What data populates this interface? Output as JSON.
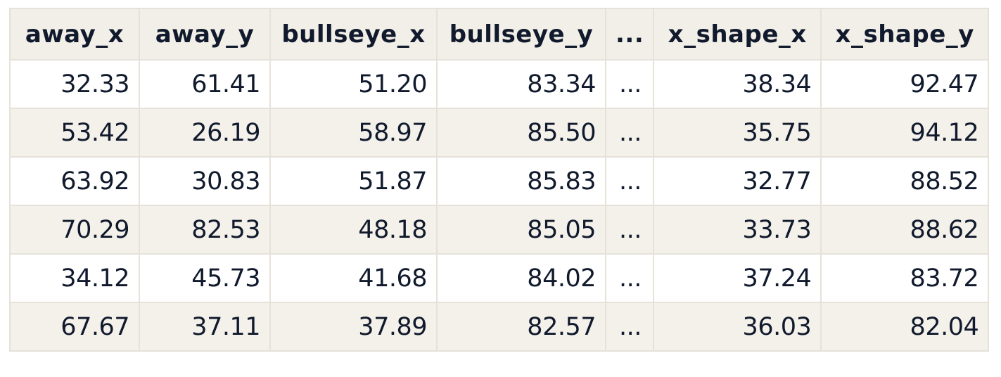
{
  "table": {
    "columns": [
      "away_x",
      "away_y",
      "bullseye_x",
      "bullseye_y",
      "...",
      "x_shape_x",
      "x_shape_y"
    ],
    "rows": [
      [
        "32.33",
        "61.41",
        "51.20",
        "83.34",
        "...",
        "38.34",
        "92.47"
      ],
      [
        "53.42",
        "26.19",
        "58.97",
        "85.50",
        "...",
        "35.75",
        "94.12"
      ],
      [
        "63.92",
        "30.83",
        "51.87",
        "85.83",
        "...",
        "32.77",
        "88.52"
      ],
      [
        "70.29",
        "82.53",
        "48.18",
        "85.05",
        "...",
        "33.73",
        "88.62"
      ],
      [
        "34.12",
        "45.73",
        "41.68",
        "84.02",
        "...",
        "37.24",
        "83.72"
      ],
      [
        "67.67",
        "37.11",
        "37.89",
        "82.57",
        "...",
        "36.03",
        "82.04"
      ]
    ]
  },
  "colors": {
    "header_bg": "#f2eee8",
    "stripe_bg": "#f4f0ea",
    "row_bg": "#ffffff",
    "border": "#e6e2da",
    "text": "#101a2c"
  }
}
